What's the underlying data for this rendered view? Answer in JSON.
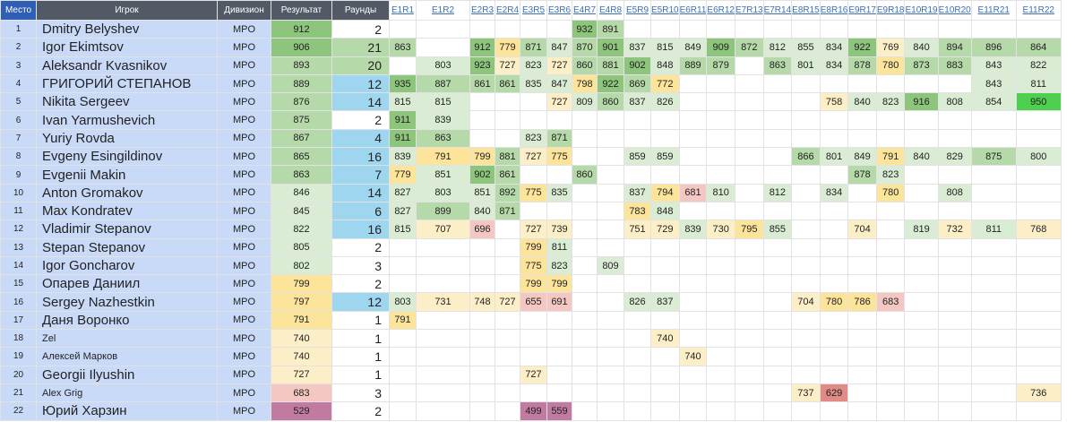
{
  "header": {
    "place": "Место",
    "player": "Игрок",
    "division": "Дивизион",
    "result": "Результат",
    "rounds": "Раунды",
    "events": [
      "E1R1",
      "E1R2",
      "E2R3",
      "E2R4",
      "E3R5",
      "E3R6",
      "E4R7",
      "E4R8",
      "E5R9",
      "E5R10",
      "E6R11",
      "E6R12",
      "E7R13",
      "E7R14",
      "E8R15",
      "E8R16",
      "E9R17",
      "E9R18",
      "E10R19",
      "E10R20",
      "E11R21",
      "E11R22"
    ]
  },
  "colors": {
    "green_dark": "#8cc57b",
    "green_mid": "#b6d9a9",
    "green_light": "#daecd3",
    "yellow": "#fde49b",
    "yellow_light": "#fcefc7",
    "pink": "#f4c7c3",
    "red": "#e08b86",
    "purple": "#c27ba0",
    "blue": "#9fd6ef",
    "bright_green": "#4fcf4f",
    "row_bg": "#c9daf8",
    "header_bg": "#525a66"
  },
  "rows": [
    {
      "place": "1",
      "name": "Dmitry Belyshev",
      "division": "MPO",
      "result": "912",
      "rounds": "2",
      "scores": [
        "",
        "",
        "",
        "",
        "",
        "",
        "932",
        "891",
        "",
        "",
        "",
        "",
        "",
        "",
        "",
        "",
        "",
        "",
        "",
        "",
        "",
        ""
      ]
    },
    {
      "place": "2",
      "name": "Igor Ekimtsov",
      "division": "MPO",
      "result": "906",
      "rounds": "21",
      "scores": [
        "863",
        "",
        "912",
        "779",
        "871",
        "847",
        "870",
        "901",
        "837",
        "815",
        "849",
        "909",
        "872",
        "812",
        "855",
        "834",
        "922",
        "769",
        "840",
        "894",
        "896",
        "864"
      ]
    },
    {
      "place": "3",
      "name": "Aleksandr Kvasnikov",
      "division": "MPO",
      "result": "893",
      "rounds": "20",
      "scores": [
        "",
        "803",
        "923",
        "727",
        "823",
        "727",
        "860",
        "881",
        "902",
        "848",
        "889",
        "879",
        "",
        "863",
        "801",
        "834",
        "878",
        "780",
        "873",
        "883",
        "843",
        "822"
      ]
    },
    {
      "place": "4",
      "name": "ГРИГОРИЙ СТЕПАНОВ",
      "division": "MPO",
      "result": "889",
      "rounds": "12",
      "scores": [
        "935",
        "887",
        "861",
        "861",
        "835",
        "847",
        "798",
        "922",
        "869",
        "772",
        "",
        "",
        "",
        "",
        "",
        "",
        "",
        "",
        "",
        "",
        "843",
        "811"
      ]
    },
    {
      "place": "5",
      "name": "Nikita Sergeev",
      "division": "MPO",
      "result": "876",
      "rounds": "14",
      "scores": [
        "815",
        "815",
        "",
        "",
        "",
        "727",
        "809",
        "860",
        "837",
        "826",
        "",
        "",
        "",
        "",
        "",
        "758",
        "840",
        "823",
        "916",
        "808",
        "854",
        "950"
      ]
    },
    {
      "place": "6",
      "name": "Ivan Yarmushevich",
      "division": "MPO",
      "result": "875",
      "rounds": "2",
      "scores": [
        "911",
        "839",
        "",
        "",
        "",
        "",
        "",
        "",
        "",
        "",
        "",
        "",
        "",
        "",
        "",
        "",
        "",
        "",
        "",
        "",
        "",
        ""
      ]
    },
    {
      "place": "7",
      "name": "Yuriy Rovda",
      "division": "MPO",
      "result": "867",
      "rounds": "4",
      "scores": [
        "911",
        "863",
        "",
        "",
        "823",
        "871",
        "",
        "",
        "",
        "",
        "",
        "",
        "",
        "",
        "",
        "",
        "",
        "",
        "",
        "",
        "",
        ""
      ]
    },
    {
      "place": "8",
      "name": "Evgeny Esingildinov",
      "division": "MPO",
      "result": "865",
      "rounds": "16",
      "scores": [
        "839",
        "791",
        "799",
        "881",
        "727",
        "775",
        "",
        "",
        "859",
        "859",
        "",
        "",
        "",
        "",
        "866",
        "801",
        "849",
        "791",
        "840",
        "829",
        "875",
        "800"
      ]
    },
    {
      "place": "9",
      "name": "Evgenii Makin",
      "division": "MPO",
      "result": "863",
      "rounds": "7",
      "scores": [
        "779",
        "851",
        "902",
        "861",
        "",
        "",
        "860",
        "",
        "",
        "",
        "",
        "",
        "",
        "",
        "",
        "",
        "878",
        "823",
        "",
        "",
        "",
        ""
      ]
    },
    {
      "place": "10",
      "name": "Anton Gromakov",
      "division": "MPO",
      "result": "846",
      "rounds": "14",
      "scores": [
        "827",
        "803",
        "851",
        "892",
        "775",
        "835",
        "",
        "",
        "837",
        "794",
        "681",
        "810",
        "",
        "812",
        "",
        "834",
        "",
        "780",
        "",
        "808",
        "",
        ""
      ]
    },
    {
      "place": "11",
      "name": "Max Kondratev",
      "division": "MPO",
      "result": "845",
      "rounds": "6",
      "scores": [
        "827",
        "899",
        "840",
        "871",
        "",
        "",
        "",
        "",
        "783",
        "848",
        "",
        "",
        "",
        "",
        "",
        "",
        "",
        "",
        "",
        "",
        "",
        ""
      ]
    },
    {
      "place": "12",
      "name": "Vladimir Stepanov",
      "division": "MPO",
      "result": "822",
      "rounds": "16",
      "scores": [
        "815",
        "707",
        "696",
        "",
        "727",
        "739",
        "",
        "",
        "751",
        "729",
        "839",
        "730",
        "795",
        "855",
        "",
        "",
        "704",
        "",
        "819",
        "732",
        "811",
        "768"
      ]
    },
    {
      "place": "13",
      "name": "Stepan Stepanov",
      "division": "MPO",
      "result": "805",
      "rounds": "2",
      "scores": [
        "",
        "",
        "",
        "",
        "799",
        "811",
        "",
        "",
        "",
        "",
        "",
        "",
        "",
        "",
        "",
        "",
        "",
        "",
        "",
        "",
        "",
        ""
      ]
    },
    {
      "place": "14",
      "name": "Igor Goncharov",
      "division": "MPO",
      "result": "802",
      "rounds": "3",
      "scores": [
        "",
        "",
        "",
        "",
        "775",
        "823",
        "",
        "809",
        "",
        "",
        "",
        "",
        "",
        "",
        "",
        "",
        "",
        "",
        "",
        "",
        "",
        ""
      ]
    },
    {
      "place": "15",
      "name": "Опарев Даниил",
      "division": "MPO",
      "result": "799",
      "rounds": "2",
      "scores": [
        "",
        "",
        "",
        "",
        "799",
        "799",
        "",
        "",
        "",
        "",
        "",
        "",
        "",
        "",
        "",
        "",
        "",
        "",
        "",
        "",
        "",
        ""
      ]
    },
    {
      "place": "16",
      "name": "Sergey Nazhestkin",
      "division": "MPO",
      "result": "797",
      "rounds": "12",
      "scores": [
        "803",
        "731",
        "748",
        "727",
        "655",
        "691",
        "",
        "",
        "826",
        "837",
        "",
        "",
        "",
        "",
        "704",
        "780",
        "786",
        "683",
        "",
        "",
        "",
        ""
      ]
    },
    {
      "place": "17",
      "name": "Даня Воронко",
      "division": "MPO",
      "result": "791",
      "rounds": "1",
      "scores": [
        "791",
        "",
        "",
        "",
        "",
        "",
        "",
        "",
        "",
        "",
        "",
        "",
        "",
        "",
        "",
        "",
        "",
        "",
        "",
        "",
        "",
        ""
      ]
    },
    {
      "place": "18",
      "name": "Zel",
      "division": "MPO",
      "result": "740",
      "rounds": "1",
      "scores": [
        "",
        "",
        "",
        "",
        "",
        "",
        "",
        "",
        "",
        "740",
        "",
        "",
        "",
        "",
        "",
        "",
        "",
        "",
        "",
        "",
        "",
        ""
      ]
    },
    {
      "place": "19",
      "name": "Алексей Марков",
      "division": "MPO",
      "result": "740",
      "rounds": "1",
      "scores": [
        "",
        "",
        "",
        "",
        "",
        "",
        "",
        "",
        "",
        "",
        "740",
        "",
        "",
        "",
        "",
        "",
        "",
        "",
        "",
        "",
        "",
        ""
      ]
    },
    {
      "place": "20",
      "name": "Georgii Ilyushin",
      "division": "MPO",
      "result": "727",
      "rounds": "1",
      "scores": [
        "",
        "",
        "",
        "",
        "727",
        "",
        "",
        "",
        "",
        "",
        "",
        "",
        "",
        "",
        "",
        "",
        "",
        "",
        "",
        "",
        "",
        ""
      ]
    },
    {
      "place": "21",
      "name": "Alex Grig",
      "division": "MPO",
      "result": "683",
      "rounds": "3",
      "scores": [
        "",
        "",
        "",
        "",
        "",
        "",
        "",
        "",
        "",
        "",
        "",
        "",
        "",
        "",
        "737",
        "629",
        "",
        "",
        "",
        "",
        "",
        "736"
      ]
    },
    {
      "place": "22",
      "name": "Юрий Харзин",
      "division": "MPO",
      "result": "529",
      "rounds": "2",
      "scores": [
        "",
        "",
        "",
        "",
        "499",
        "559",
        "",
        "",
        "",
        "",
        "",
        "",
        "",
        "",
        "",
        "",
        "",
        "",
        "",
        "",
        "",
        ""
      ]
    }
  ]
}
